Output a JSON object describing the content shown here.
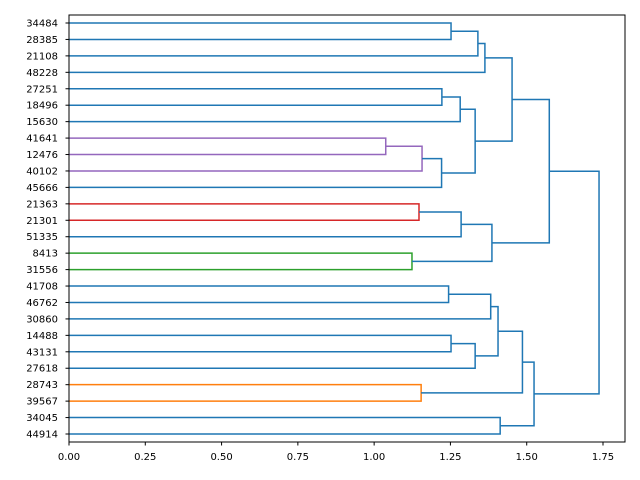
{
  "chart_data": {
    "type": "dendrogram",
    "orientation": "left",
    "xlim": [
      0,
      1.82
    ],
    "xticks": [
      "0.00",
      "0.25",
      "0.50",
      "0.75",
      "1.00",
      "1.25",
      "1.50",
      "1.75"
    ],
    "xtick_values": [
      0,
      0.25,
      0.5,
      0.75,
      1.0,
      1.25,
      1.5,
      1.75
    ],
    "grid": false,
    "colors": {
      "blue": "#1f77b4",
      "purple": "#9467bd",
      "red": "#d62728",
      "green": "#2ca02c",
      "orange": "#ff7f0e"
    },
    "leaves": [
      "34484",
      "28385",
      "21108",
      "48228",
      "27251",
      "18496",
      "15630",
      "41641",
      "12476",
      "40102",
      "45666",
      "21363",
      "21301",
      "51335",
      "8413",
      "31556",
      "41708",
      "46762",
      "30860",
      "14488",
      "43131",
      "27618",
      "28743",
      "39567",
      "34045",
      "44914"
    ],
    "tree": {
      "h": 1.737,
      "c": "blue",
      "ch": [
        {
          "h": 1.574,
          "c": "blue",
          "ch": [
            {
              "h": 1.452,
              "c": "blue",
              "ch": [
                {
                  "h": 1.363,
                  "c": "blue",
                  "ch": [
                    {
                      "h": 1.34,
                      "c": "blue",
                      "ch": [
                        {
                          "h": 1.252,
                          "c": "blue",
                          "ch": [
                            0,
                            1
                          ]
                        },
                        2
                      ]
                    },
                    3
                  ]
                },
                {
                  "h": 1.331,
                  "c": "blue",
                  "ch": [
                    {
                      "h": 1.282,
                      "c": "blue",
                      "ch": [
                        {
                          "h": 1.222,
                          "c": "blue",
                          "ch": [
                            4,
                            5
                          ]
                        },
                        6
                      ]
                    },
                    {
                      "h": 1.221,
                      "c": "blue",
                      "ch": [
                        {
                          "h": 1.157,
                          "c": "purple",
                          "ch": [
                            {
                              "h": 1.038,
                              "c": "purple",
                              "ch": [
                                7,
                                8
                              ]
                            },
                            9
                          ]
                        },
                        10
                      ]
                    }
                  ]
                }
              ]
            },
            {
              "h": 1.386,
              "c": "blue",
              "ch": [
                {
                  "h": 1.285,
                  "c": "blue",
                  "ch": [
                    {
                      "h": 1.147,
                      "c": "red",
                      "ch": [
                        11,
                        12
                      ]
                    },
                    13
                  ]
                },
                {
                  "h": 1.124,
                  "c": "green",
                  "ch": [
                    14,
                    15
                  ]
                }
              ]
            }
          ]
        },
        {
          "h": 1.524,
          "c": "blue",
          "ch": [
            {
              "h": 1.486,
              "c": "blue",
              "ch": [
                {
                  "h": 1.406,
                  "c": "blue",
                  "ch": [
                    {
                      "h": 1.382,
                      "c": "blue",
                      "ch": [
                        {
                          "h": 1.244,
                          "c": "blue",
                          "ch": [
                            16,
                            17
                          ]
                        },
                        18
                      ]
                    },
                    {
                      "h": 1.331,
                      "c": "blue",
                      "ch": [
                        {
                          "h": 1.252,
                          "c": "blue",
                          "ch": [
                            19,
                            20
                          ]
                        },
                        21
                      ]
                    }
                  ]
                },
                {
                  "h": 1.154,
                  "c": "orange",
                  "ch": [
                    22,
                    23
                  ]
                }
              ]
            },
            {
              "h": 1.413,
              "c": "blue",
              "ch": [
                24,
                25
              ]
            }
          ]
        }
      ]
    }
  }
}
